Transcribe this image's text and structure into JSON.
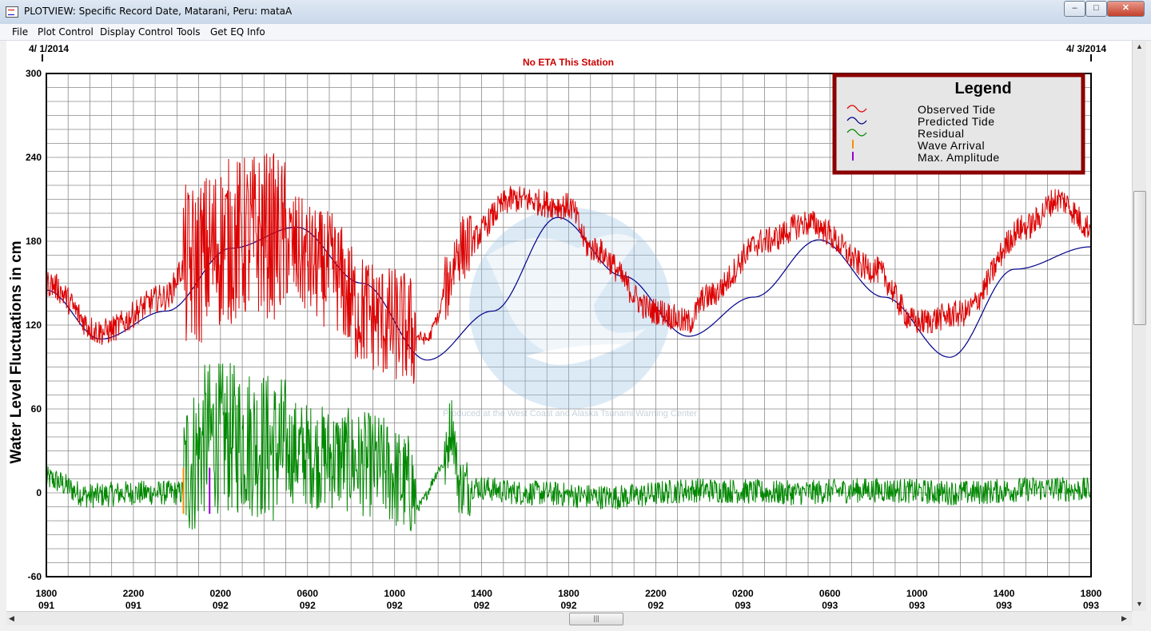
{
  "window": {
    "title": "PLOTVIEW: Specific Record Date, Matarani, Peru: mataA",
    "minimize_icon": "minimize-icon",
    "maximize_icon": "maximize-icon",
    "close_icon": "close-icon"
  },
  "menu": [
    "File",
    "Plot Control",
    "Display Control",
    "Tools",
    "Get EQ Info"
  ],
  "plot": {
    "start_date": "4/ 1/2014",
    "end_date": "4/ 3/2014",
    "eta_text": "No ETA This Station",
    "ylabel": "Water Level Fluctuations in cm",
    "legend": {
      "title": "Legend",
      "items": [
        "Observed Tide",
        "Predicted Tide",
        "Residual",
        "Wave Arrival",
        "Max. Amplitude"
      ]
    },
    "watermark_text": "Produced at the West Coast and Alaska Tsunami Warning Center",
    "colors": {
      "observed": "#dd0000",
      "predicted": "#00008b",
      "residual": "#008800",
      "wave_arrival": "#ff8c00",
      "max_amplitude": "#9400d3",
      "eta_text": "#cc0000",
      "legend_border": "#8b0000"
    }
  },
  "chart_data": {
    "type": "line",
    "title": "No ETA This Station",
    "ylabel": "Water Level Fluctuations in cm",
    "ylim": [
      -60,
      300
    ],
    "yticks": [
      300,
      240,
      180,
      120,
      60,
      0,
      -60
    ],
    "xlim_hours": [
      0,
      48
    ],
    "xticks": [
      {
        "time": "1800",
        "day": "091"
      },
      {
        "time": "2200",
        "day": "091"
      },
      {
        "time": "0200",
        "day": "092"
      },
      {
        "time": "0600",
        "day": "092"
      },
      {
        "time": "1000",
        "day": "092"
      },
      {
        "time": "1400",
        "day": "092"
      },
      {
        "time": "1800",
        "day": "092"
      },
      {
        "time": "2200",
        "day": "092"
      },
      {
        "time": "0200",
        "day": "093"
      },
      {
        "time": "0600",
        "day": "093"
      },
      {
        "time": "1000",
        "day": "093"
      },
      {
        "time": "1400",
        "day": "093"
      },
      {
        "time": "1800",
        "day": "093"
      }
    ],
    "grid": true,
    "legend_position": "top-right",
    "series": [
      {
        "name": "Predicted Tide",
        "x": [
          0,
          2.5,
          5.5,
          8.5,
          11.5,
          14.5,
          17.5,
          20.5,
          23.5,
          26.5,
          29.5,
          32.5,
          35.5,
          38.5,
          41.5,
          44.5,
          48
        ],
        "y": [
          145,
          110,
          130,
          175,
          190,
          150,
          95,
          130,
          197,
          155,
          112,
          140,
          181,
          140,
          97,
          160,
          176
        ]
      },
      {
        "name": "Observed Tide",
        "x": [
          0,
          2.5,
          5.5,
          6.3,
          8.5,
          10,
          13,
          14.5,
          16,
          17.5,
          18,
          18.3,
          19,
          21.5,
          24,
          25,
          28,
          29.5,
          30.3,
          33,
          35,
          38,
          40,
          42,
          45,
          46.5,
          48
        ],
        "y": [
          150,
          115,
          140,
          160,
          180,
          185,
          160,
          130,
          120,
          110,
          125,
          145,
          175,
          210,
          205,
          175,
          130,
          122,
          140,
          180,
          193,
          160,
          122,
          128,
          190,
          210,
          190
        ]
      },
      {
        "name": "Residual",
        "x": [
          0,
          2,
          4,
          6.2,
          6.5,
          7.5,
          9,
          11,
          13,
          15,
          16.8,
          17,
          18.3,
          18.6,
          19,
          22,
          26,
          30,
          34,
          38,
          42,
          46,
          48
        ],
        "y": [
          10,
          -2,
          0,
          0,
          20,
          40,
          38,
          30,
          25,
          20,
          5,
          -10,
          20,
          50,
          5,
          0,
          -3,
          2,
          0,
          2,
          0,
          3,
          2
        ]
      }
    ],
    "markers": [
      {
        "name": "Wave Arrival",
        "x": 6.3
      },
      {
        "name": "Max. Amplitude",
        "x": 7.5
      }
    ]
  }
}
